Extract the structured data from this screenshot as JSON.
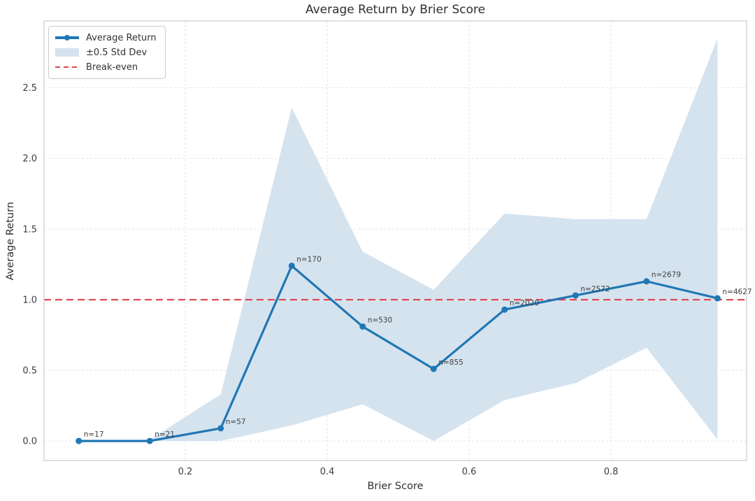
{
  "title": "Average Return by Brier Score",
  "legend": {
    "items": [
      {
        "label": "Average Return",
        "type": "line-marker"
      },
      {
        "label": "±0.5 Std Dev",
        "type": "patch"
      },
      {
        "label": "Break-even",
        "type": "dashed-line"
      }
    ]
  },
  "chart_data": {
    "type": "line",
    "title": "Average Return by Brier Score",
    "xlabel": "Brier Score",
    "ylabel": "Average Return",
    "x": [
      0.05,
      0.15,
      0.25,
      0.35,
      0.45,
      0.55,
      0.65,
      0.75,
      0.85,
      0.95
    ],
    "series": [
      {
        "name": "Average Return",
        "values": [
          0.0,
          0.0,
          0.09,
          1.24,
          0.81,
          0.51,
          0.93,
          1.03,
          1.13,
          1.01
        ]
      }
    ],
    "band": {
      "name": "±0.5 Std Dev",
      "upper": [
        0.0,
        0.01,
        0.33,
        2.36,
        1.34,
        1.07,
        1.61,
        1.57,
        1.57,
        2.85
      ],
      "lower": [
        0.0,
        0.0,
        0.0,
        0.11,
        0.26,
        0.0,
        0.29,
        0.41,
        0.66,
        0.01
      ]
    },
    "breakeven": {
      "name": "Break-even",
      "y": 1.0
    },
    "point_labels": [
      "n=17",
      "n=21",
      "n=57",
      "n=170",
      "n=530",
      "n=855",
      "n=2020",
      "n=2572",
      "n=2679",
      "n=4627"
    ],
    "sample_counts": [
      17,
      21,
      57,
      170,
      530,
      855,
      2020,
      2572,
      2679,
      4627
    ],
    "xticks": [
      0.2,
      0.4,
      0.6,
      0.8
    ],
    "yticks": [
      0.0,
      0.5,
      1.0,
      1.5,
      2.0,
      2.5
    ],
    "xlim": [
      0.001,
      0.991
    ],
    "ylim": [
      -0.138,
      2.973
    ],
    "grid": true,
    "legend_position": "upper-left",
    "colors": {
      "line": "#2077b4",
      "band": "#d5e3ef",
      "breakeven": "#e0454d",
      "grid": "#e2e2e8",
      "spine": "#cccccc",
      "tick_text": "#3d3d3d",
      "annotation_text": "#3f3f3f"
    }
  }
}
